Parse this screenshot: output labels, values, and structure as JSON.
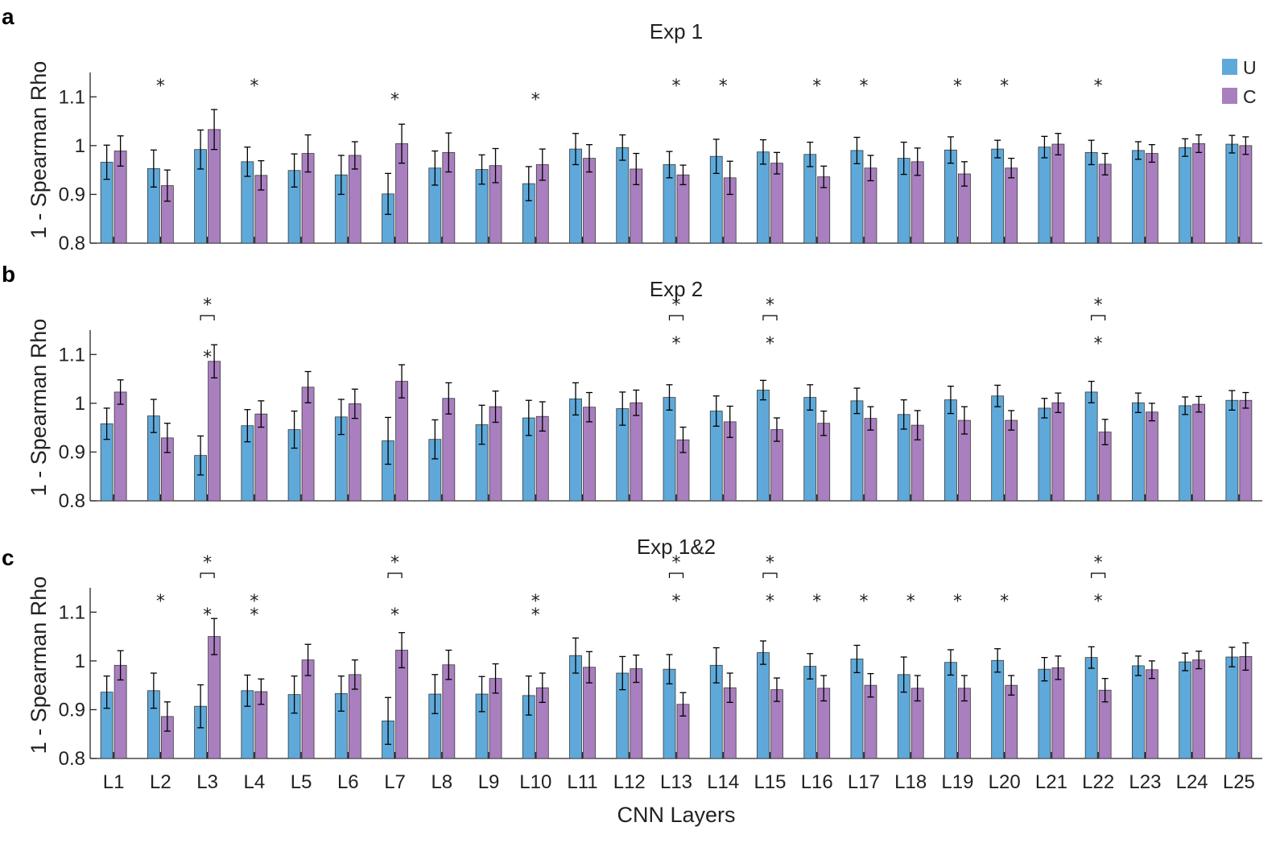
{
  "colors": {
    "U": "#5ea9d9",
    "C": "#a97fbf",
    "star_U": "#2a8fd4",
    "star_C": "#8c3c9c",
    "star_pair": "#000000",
    "axis": "#262626"
  },
  "legend": {
    "placement": "top-right",
    "entries": [
      {
        "label": "U",
        "color": "#5ea9d9"
      },
      {
        "label": "C",
        "color": "#a97fbf"
      }
    ]
  },
  "xlabel": "CNN Layers",
  "star_glyph": "*",
  "chart_data": [
    {
      "type": "bar",
      "panel": "a",
      "title": "Exp 1",
      "ylabel": "1 - Spearman Rho",
      "ylim": [
        0.8,
        1.15
      ],
      "yticks": [
        0.8,
        0.9,
        1,
        1.1
      ],
      "ytick_labels": [
        "0.8",
        "0.9",
        "1",
        "1.1"
      ],
      "grid": false,
      "categories": [
        "L1",
        "L2",
        "L3",
        "L4",
        "L5",
        "L6",
        "L7",
        "L8",
        "L9",
        "L10",
        "L11",
        "L12",
        "L13",
        "L14",
        "L15",
        "L16",
        "L17",
        "L18",
        "L19",
        "L20",
        "L21",
        "L22",
        "L23",
        "L24",
        "L25"
      ],
      "series": [
        {
          "name": "U",
          "values": [
            0.966,
            0.953,
            0.992,
            0.967,
            0.949,
            0.94,
            0.901,
            0.954,
            0.951,
            0.922,
            0.993,
            0.996,
            0.961,
            0.978,
            0.987,
            0.982,
            0.99,
            0.974,
            0.991,
            0.993,
            0.997,
            0.986,
            0.99,
            0.996,
            1.003
          ],
          "errors": [
            0.035,
            0.038,
            0.04,
            0.03,
            0.034,
            0.04,
            0.042,
            0.035,
            0.03,
            0.035,
            0.032,
            0.026,
            0.027,
            0.035,
            0.025,
            0.025,
            0.027,
            0.033,
            0.027,
            0.018,
            0.022,
            0.025,
            0.018,
            0.018,
            0.018
          ]
        },
        {
          "name": "C",
          "values": [
            0.989,
            0.918,
            1.033,
            0.939,
            0.984,
            0.98,
            1.004,
            0.986,
            0.959,
            0.961,
            0.974,
            0.952,
            0.94,
            0.934,
            0.964,
            0.936,
            0.954,
            0.967,
            0.942,
            0.954,
            1.003,
            0.962,
            0.984,
            1.004,
            1.0
          ],
          "errors": [
            0.031,
            0.032,
            0.041,
            0.03,
            0.038,
            0.028,
            0.04,
            0.04,
            0.035,
            0.032,
            0.028,
            0.032,
            0.02,
            0.034,
            0.022,
            0.022,
            0.026,
            0.028,
            0.025,
            0.02,
            0.022,
            0.022,
            0.018,
            0.018,
            0.018
          ]
        }
      ],
      "sig_U": [
        "L7",
        "L10"
      ],
      "sig_C": [
        "L2",
        "L4",
        "L13",
        "L14",
        "L16",
        "L17",
        "L19",
        "L20",
        "L22"
      ],
      "sig_pair": []
    },
    {
      "type": "bar",
      "panel": "b",
      "title": "Exp 2",
      "ylabel": "1 - Spearman Rho",
      "ylim": [
        0.8,
        1.15
      ],
      "yticks": [
        0.8,
        0.9,
        1,
        1.1
      ],
      "ytick_labels": [
        "0.8",
        "0.9",
        "1",
        "1.1"
      ],
      "grid": false,
      "categories": [
        "L1",
        "L2",
        "L3",
        "L4",
        "L5",
        "L6",
        "L7",
        "L8",
        "L9",
        "L10",
        "L11",
        "L12",
        "L13",
        "L14",
        "L15",
        "L16",
        "L17",
        "L18",
        "L19",
        "L20",
        "L21",
        "L22",
        "L23",
        "L24",
        "L25"
      ],
      "series": [
        {
          "name": "U",
          "values": [
            0.958,
            0.974,
            0.893,
            0.954,
            0.946,
            0.972,
            0.923,
            0.926,
            0.956,
            0.97,
            1.009,
            0.989,
            1.012,
            0.984,
            1.027,
            1.012,
            1.005,
            0.977,
            1.007,
            1.015,
            0.99,
            1.023,
            1.001,
            0.995,
            1.006
          ],
          "errors": [
            0.032,
            0.034,
            0.04,
            0.033,
            0.038,
            0.036,
            0.048,
            0.04,
            0.04,
            0.036,
            0.033,
            0.034,
            0.026,
            0.031,
            0.02,
            0.026,
            0.026,
            0.03,
            0.028,
            0.022,
            0.02,
            0.022,
            0.02,
            0.018,
            0.02
          ]
        },
        {
          "name": "C",
          "values": [
            1.023,
            0.929,
            1.086,
            0.978,
            1.033,
            0.999,
            1.045,
            1.01,
            0.993,
            0.973,
            0.992,
            1.001,
            0.925,
            0.962,
            0.946,
            0.959,
            0.969,
            0.955,
            0.965,
            0.965,
            1.001,
            0.941,
            0.982,
            0.998,
            1.006
          ],
          "errors": [
            0.025,
            0.03,
            0.034,
            0.027,
            0.032,
            0.03,
            0.034,
            0.032,
            0.032,
            0.03,
            0.03,
            0.026,
            0.026,
            0.032,
            0.024,
            0.025,
            0.024,
            0.03,
            0.028,
            0.02,
            0.02,
            0.026,
            0.018,
            0.016,
            0.016
          ]
        }
      ],
      "sig_U": [
        "L3"
      ],
      "sig_C": [
        "L13",
        "L15",
        "L22"
      ],
      "sig_pair": [
        "L3",
        "L13",
        "L15",
        "L22"
      ]
    },
    {
      "type": "bar",
      "panel": "c",
      "title": "Exp 1&2",
      "ylabel": "1 - Spearman Rho",
      "ylim": [
        0.8,
        1.15
      ],
      "yticks": [
        0.8,
        0.9,
        1,
        1.1
      ],
      "ytick_labels": [
        "0.8",
        "0.9",
        "1",
        "1.1"
      ],
      "grid": false,
      "categories": [
        "L1",
        "L2",
        "L3",
        "L4",
        "L5",
        "L6",
        "L7",
        "L8",
        "L9",
        "L10",
        "L11",
        "L12",
        "L13",
        "L14",
        "L15",
        "L16",
        "L17",
        "L18",
        "L19",
        "L20",
        "L21",
        "L22",
        "L23",
        "L24",
        "L25"
      ],
      "series": [
        {
          "name": "U",
          "values": [
            0.936,
            0.939,
            0.907,
            0.939,
            0.931,
            0.933,
            0.877,
            0.932,
            0.932,
            0.929,
            1.011,
            0.975,
            0.983,
            0.991,
            1.017,
            0.989,
            1.004,
            0.972,
            0.997,
            1.001,
            0.983,
            1.007,
            0.99,
            0.998,
            1.008
          ],
          "errors": [
            0.033,
            0.036,
            0.044,
            0.032,
            0.038,
            0.036,
            0.048,
            0.04,
            0.036,
            0.04,
            0.036,
            0.034,
            0.03,
            0.036,
            0.024,
            0.026,
            0.028,
            0.036,
            0.026,
            0.024,
            0.024,
            0.022,
            0.02,
            0.018,
            0.02
          ]
        },
        {
          "name": "C",
          "values": [
            0.991,
            0.886,
            1.05,
            0.937,
            1.002,
            0.972,
            1.022,
            0.992,
            0.964,
            0.945,
            0.987,
            0.984,
            0.911,
            0.945,
            0.941,
            0.944,
            0.95,
            0.944,
            0.944,
            0.95,
            0.986,
            0.94,
            0.982,
            1.002,
            1.009
          ],
          "errors": [
            0.03,
            0.03,
            0.037,
            0.026,
            0.032,
            0.03,
            0.036,
            0.03,
            0.03,
            0.03,
            0.032,
            0.028,
            0.024,
            0.03,
            0.024,
            0.026,
            0.024,
            0.026,
            0.026,
            0.02,
            0.024,
            0.024,
            0.018,
            0.018,
            0.028
          ]
        }
      ],
      "sig_U": [
        "L3",
        "L4",
        "L7",
        "L10"
      ],
      "sig_C": [
        "L2",
        "L4",
        "L10",
        "L13",
        "L15",
        "L16",
        "L17",
        "L18",
        "L19",
        "L20",
        "L22"
      ],
      "sig_pair": [
        "L3",
        "L7",
        "L13",
        "L15",
        "L22"
      ]
    }
  ]
}
